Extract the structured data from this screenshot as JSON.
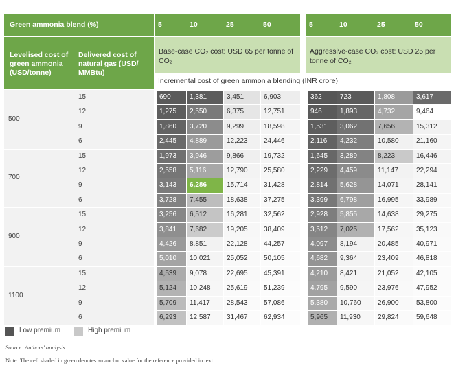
{
  "header": {
    "blend_label": "Green ammonia blend (%)",
    "blend_values_base": [
      "5",
      "10",
      "25",
      "50"
    ],
    "blend_values_aggr": [
      "5",
      "10",
      "25",
      "50"
    ],
    "levelised_label": "Levelised cost of green ammonia (USD/tonne)",
    "delivered_label": "Delivered cost of natural gas (USD/ MMBtu)",
    "base_case": "Base-case CO₂ cost: USD 65 per tonne of CO₂",
    "aggressive_case": "Aggressive-case CO₂ cost: USD 25 per tonne of CO₂",
    "incremental_label": "Incremental cost of green ammonia blending (INR crore)"
  },
  "groups": [
    {
      "levelised": "500",
      "rows": [
        {
          "gas": "15",
          "base": [
            "690",
            "1,381",
            "3,451",
            "6,903"
          ],
          "aggr": [
            "362",
            "723",
            "1,808",
            "3,617"
          ]
        },
        {
          "gas": "12",
          "base": [
            "1,275",
            "2,550",
            "6,375",
            "12,751"
          ],
          "aggr": [
            "946",
            "1,893",
            "4,732",
            "9,464"
          ]
        },
        {
          "gas": "9",
          "base": [
            "1,860",
            "3,720",
            "9,299",
            "18,598"
          ],
          "aggr": [
            "1,531",
            "3,062",
            "7,656",
            "15,312"
          ]
        },
        {
          "gas": "6",
          "base": [
            "2,445",
            "4,889",
            "12,223",
            "24,446"
          ],
          "aggr": [
            "2,116",
            "4,232",
            "10,580",
            "21,160"
          ]
        }
      ]
    },
    {
      "levelised": "700",
      "rows": [
        {
          "gas": "15",
          "base": [
            "1,973",
            "3,946",
            "9,866",
            "19,732"
          ],
          "aggr": [
            "1,645",
            "3,289",
            "8,223",
            "16,446"
          ]
        },
        {
          "gas": "12",
          "base": [
            "2,558",
            "5,116",
            "12,790",
            "25,580"
          ],
          "aggr": [
            "2,229",
            "4,459",
            "11,147",
            "22,294"
          ]
        },
        {
          "gas": "9",
          "base": [
            "3,143",
            "6,286",
            "15,714",
            "31,428"
          ],
          "aggr": [
            "2,814",
            "5,628",
            "14,071",
            "28,141"
          ]
        },
        {
          "gas": "6",
          "base": [
            "3,728",
            "7,455",
            "18,638",
            "37,275"
          ],
          "aggr": [
            "3,399",
            "6,798",
            "16,995",
            "33,989"
          ]
        }
      ]
    },
    {
      "levelised": "900",
      "rows": [
        {
          "gas": "15",
          "base": [
            "3,256",
            "6,512",
            "16,281",
            "32,562"
          ],
          "aggr": [
            "2,928",
            "5,855",
            "14,638",
            "29,275"
          ]
        },
        {
          "gas": "12",
          "base": [
            "3,841",
            "7,682",
            "19,205",
            "38,409"
          ],
          "aggr": [
            "3,512",
            "7,025",
            "17,562",
            "35,123"
          ]
        },
        {
          "gas": "9",
          "base": [
            "4,426",
            "8,851",
            "22,128",
            "44,257"
          ],
          "aggr": [
            "4,097",
            "8,194",
            "20,485",
            "40,971"
          ]
        },
        {
          "gas": "6",
          "base": [
            "5,010",
            "10,021",
            "25,052",
            "50,105"
          ],
          "aggr": [
            "4,682",
            "9,364",
            "23,409",
            "46,818"
          ]
        }
      ]
    },
    {
      "levelised": "1100",
      "rows": [
        {
          "gas": "15",
          "base": [
            "4,539",
            "9,078",
            "22,695",
            "45,391"
          ],
          "aggr": [
            "4,210",
            "8,421",
            "21,052",
            "42,105"
          ]
        },
        {
          "gas": "12",
          "base": [
            "5,124",
            "10,248",
            "25,619",
            "51,239"
          ],
          "aggr": [
            "4,795",
            "9,590",
            "23,976",
            "47,952"
          ]
        },
        {
          "gas": "9",
          "base": [
            "5,709",
            "11,417",
            "28,543",
            "57,086"
          ],
          "aggr": [
            "5,380",
            "10,760",
            "26,900",
            "53,800"
          ]
        },
        {
          "gas": "6",
          "base": [
            "6,293",
            "12,587",
            "31,467",
            "62,934"
          ],
          "aggr": [
            "5,965",
            "11,930",
            "29,824",
            "59,648"
          ]
        }
      ]
    }
  ],
  "shades": {
    "base": [
      [
        "#5a5a5a",
        "#5c5c5c",
        "#e2e2e2",
        "#ededed"
      ],
      [
        "#5e5e5e",
        "#7a7a7a",
        "#e6e6e6",
        "#f1f1f1"
      ],
      [
        "#636363",
        "#8c8c8c",
        "#eeeeee",
        "#f4f4f4"
      ],
      [
        "#6a6a6a",
        "#9a9a9a",
        "#f1f1f1",
        "#f6f6f6"
      ],
      [
        "#707070",
        "#9d9d9d",
        "#efefef",
        "#f5f5f5"
      ],
      [
        "#767676",
        "#a7a7a7",
        "#f3f3f3",
        "#f7f7f7"
      ],
      [
        "#7b7b7b",
        "#7fb548",
        "#f5f5f5",
        "#f8f8f8"
      ],
      [
        "#828282",
        "#bdbdbd",
        "#f6f6f6",
        "#f9f9f9"
      ],
      [
        "#878787",
        "#c4c4c4",
        "#f6f6f6",
        "#fafafa"
      ],
      [
        "#8f8f8f",
        "#cbcbcb",
        "#f7f7f7",
        "#fafafa"
      ],
      [
        "#999999",
        "#f2f2f2",
        "#f8f8f8",
        "#fbfbfb"
      ],
      [
        "#a4a4a4",
        "#f4f4f4",
        "#f9f9f9",
        "#fbfbfb"
      ],
      [
        "#acacac",
        "#f5f5f5",
        "#f9f9f9",
        "#fbfbfb"
      ],
      [
        "#b3b3b3",
        "#f6f6f6",
        "#fafafa",
        "#fcfcfc"
      ],
      [
        "#bbbbbb",
        "#f7f7f7",
        "#fafafa",
        "#fcfcfc"
      ],
      [
        "#c2c2c2",
        "#f8f8f8",
        "#fbfbfb",
        "#fcfcfc"
      ]
    ],
    "aggr": [
      [
        "#565656",
        "#5a5a5a",
        "#9a9a9a",
        "#6a6a6a"
      ],
      [
        "#5a5a5a",
        "#666666",
        "#a5a5a5",
        "#ffffff"
      ],
      [
        "#5e5e5e",
        "#727272",
        "#b3b3b3",
        "#f2f2f2"
      ],
      [
        "#636363",
        "#7e7e7e",
        "#f1f1f1",
        "#f5f5f5"
      ],
      [
        "#676767",
        "#838383",
        "#c9c9c9",
        "#f3f3f3"
      ],
      [
        "#6c6c6c",
        "#8b8b8b",
        "#f2f2f2",
        "#f6f6f6"
      ],
      [
        "#717171",
        "#959595",
        "#f4f4f4",
        "#f7f7f7"
      ],
      [
        "#787878",
        "#9f9f9f",
        "#f5f5f5",
        "#f8f8f8"
      ],
      [
        "#7e7e7e",
        "#a8a8a8",
        "#f5f5f5",
        "#f9f9f9"
      ],
      [
        "#858585",
        "#b1b1b1",
        "#f6f6f6",
        "#f9f9f9"
      ],
      [
        "#8c8c8c",
        "#f2f2f2",
        "#f7f7f7",
        "#fafafa"
      ],
      [
        "#949494",
        "#f3f3f3",
        "#f8f8f8",
        "#fafafa"
      ],
      [
        "#9b9b9b",
        "#f4f4f4",
        "#f8f8f8",
        "#fbfbfb"
      ],
      [
        "#a2a2a2",
        "#f5f5f5",
        "#f9f9f9",
        "#fbfbfb"
      ],
      [
        "#a9a9a9",
        "#f6f6f6",
        "#f9f9f9",
        "#fbfbfb"
      ],
      [
        "#b0b0b0",
        "#f7f7f7",
        "#fafafa",
        "#fcfcfc"
      ]
    ]
  },
  "legend": {
    "low": "Low premium",
    "high": "High premium",
    "low_color": "#555555",
    "high_color": "#c8c8c8"
  },
  "footnotes": {
    "source": "Source: Authors' analysis",
    "note": "Note: The cell shaded in green denotes an anchor value for the reference provided in text."
  },
  "colors": {
    "header_green": "#6ea649",
    "light_green": "#c9dfb2",
    "anchor_green": "#7fb548"
  }
}
